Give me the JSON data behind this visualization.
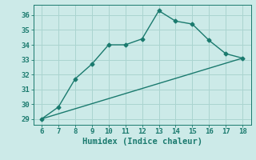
{
  "line1_x": [
    6,
    7,
    8,
    9,
    10,
    11,
    12,
    13,
    14,
    15,
    16,
    17,
    18
  ],
  "line1_y": [
    29.0,
    29.8,
    31.7,
    32.7,
    34.0,
    34.0,
    34.4,
    36.3,
    35.6,
    35.4,
    34.3,
    33.4,
    33.1
  ],
  "line2_x": [
    6,
    18
  ],
  "line2_y": [
    29.0,
    33.1
  ],
  "color": "#1a7a6e",
  "xlabel": "Humidex (Indice chaleur)",
  "xlim": [
    5.5,
    18.5
  ],
  "ylim": [
    28.6,
    36.7
  ],
  "xticks": [
    6,
    7,
    8,
    9,
    10,
    11,
    12,
    13,
    14,
    15,
    16,
    17,
    18
  ],
  "yticks": [
    29,
    30,
    31,
    32,
    33,
    34,
    35,
    36
  ],
  "bg_color": "#cceae8",
  "grid_color": "#aad4d0",
  "marker": "D",
  "marker_size": 2.5,
  "line_width": 1.0,
  "xlabel_fontsize": 7.5,
  "tick_fontsize": 6.5
}
